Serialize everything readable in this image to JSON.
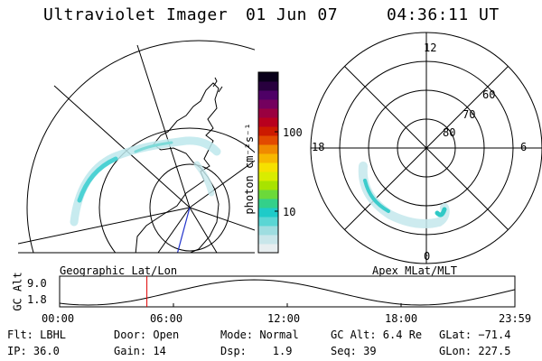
{
  "header": {
    "instrument": "Ultraviolet Imager",
    "date": "01 Jun 07",
    "time": "04:36:11 UT"
  },
  "colorbar": {
    "unit_label": "photon cm⁻²s⁻¹",
    "ticks": [
      "100",
      "10"
    ],
    "colors": [
      "#e8eef0",
      "#c9e6ea",
      "#9edde0",
      "#5ad6d4",
      "#1ecbc8",
      "#33d08a",
      "#6bd93a",
      "#a8e300",
      "#d9ec00",
      "#f6e100",
      "#f7b800",
      "#f08a00",
      "#e24a00",
      "#cc1a00",
      "#b8001e",
      "#9a0040",
      "#74005e",
      "#4e0066",
      "#28003e",
      "#0a001a"
    ]
  },
  "left_panel": {
    "label": "Geographic Lat/Lon"
  },
  "right_panel": {
    "label": "Apex MLat/MLT",
    "mlt_labels": [
      "12",
      "18",
      "6",
      "0"
    ],
    "lat_labels": [
      "60",
      "70",
      "80"
    ]
  },
  "altitude_plot": {
    "ylabel": "GC Alt",
    "y_ticks": [
      "9.0",
      "1.8"
    ],
    "x_ticks": [
      "00:00",
      "06:00",
      "12:00",
      "18:00",
      "23:59"
    ],
    "current_time_hours": 4.6
  },
  "status": {
    "filter_label": "Flt: LBHL",
    "ip_label": "IP: 36.0",
    "door_label": "Door: Open",
    "gain_label": "Gain: 14",
    "mode_label": "Mode: Normal",
    "dsp_label": "Dsp:    1.9",
    "gcalt_label": "GC Alt: 6.4 Re",
    "seq_label": "Seq: 39",
    "glat_label": "GLat: −71.4",
    "glon_label": "GLon: 227.5"
  }
}
